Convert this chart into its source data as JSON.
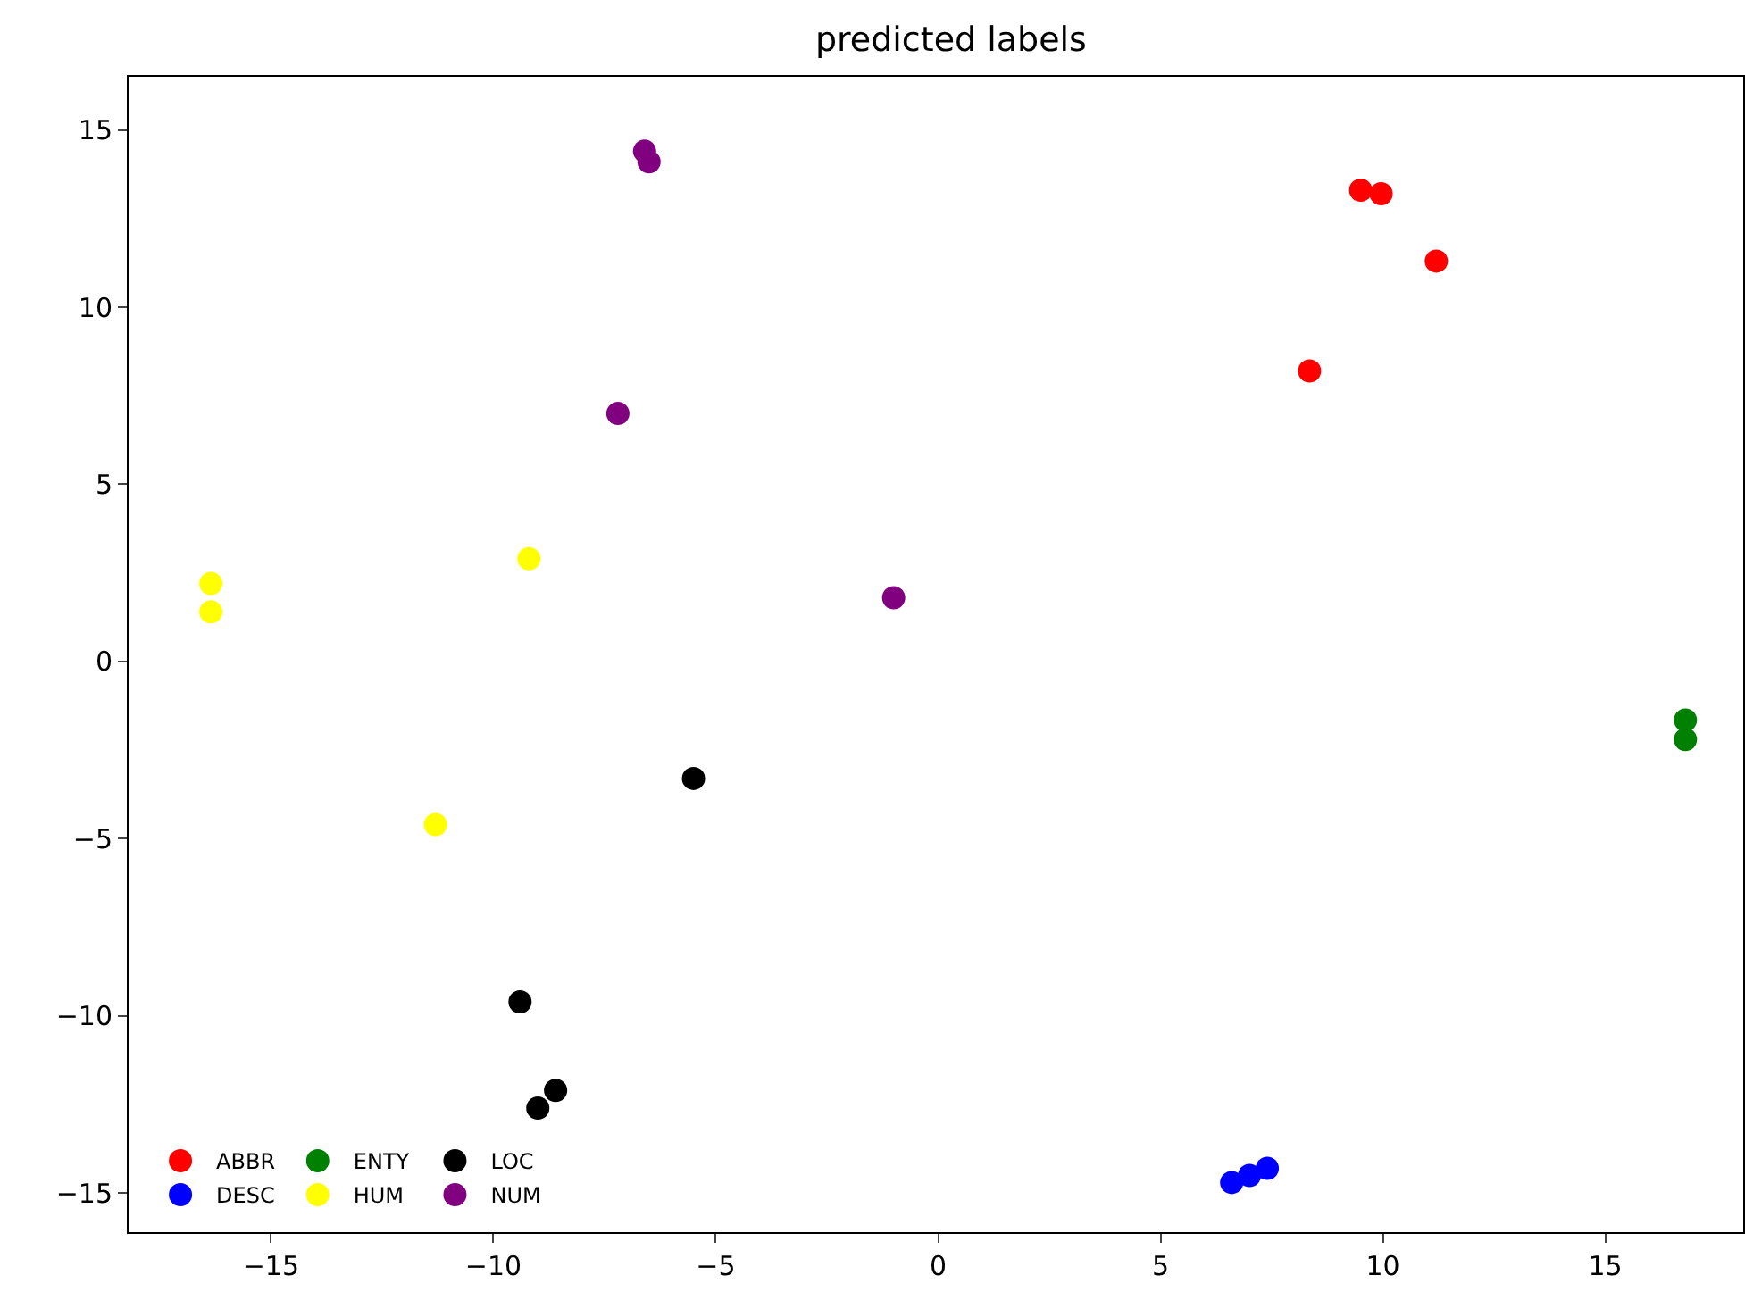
{
  "chart_data": {
    "type": "scatter",
    "title": "predicted labels",
    "xlim": [
      -18.2,
      18.1
    ],
    "ylim": [
      -16.1,
      16.5
    ],
    "xticks": [
      -15,
      -10,
      -5,
      0,
      5,
      10,
      15
    ],
    "yticks": [
      -15,
      -10,
      -5,
      0,
      5,
      10,
      15
    ],
    "legend": "bottom left",
    "marker": "circle",
    "series": [
      {
        "name": "ABBR",
        "color": "#ff0000",
        "x": [
          9.5,
          9.96,
          11.2,
          8.35
        ],
        "values": [
          13.3,
          13.2,
          11.3,
          8.2
        ]
      },
      {
        "name": "DESC",
        "color": "#0000ff",
        "x": [
          6.6,
          7.0,
          7.4
        ],
        "values": [
          -14.7,
          -14.5,
          -14.3
        ]
      },
      {
        "name": "ENTY",
        "color": "#008000",
        "x": [
          16.8,
          16.8
        ],
        "values": [
          -1.65,
          -2.2
        ]
      },
      {
        "name": "HUM",
        "color": "#ffff00",
        "x": [
          -16.35,
          -16.35,
          -9.2,
          -11.3
        ],
        "values": [
          2.2,
          1.4,
          2.9,
          -4.6
        ]
      },
      {
        "name": "LOC",
        "color": "#000000",
        "x": [
          -5.5,
          -9.4,
          -8.6,
          -9.0
        ],
        "values": [
          -3.3,
          -9.6,
          -12.1,
          -12.6
        ]
      },
      {
        "name": "NUM",
        "color": "#800080",
        "x": [
          -6.6,
          -6.5,
          -7.2,
          -1.0
        ],
        "values": [
          14.4,
          14.1,
          7.0,
          1.8
        ]
      }
    ]
  }
}
